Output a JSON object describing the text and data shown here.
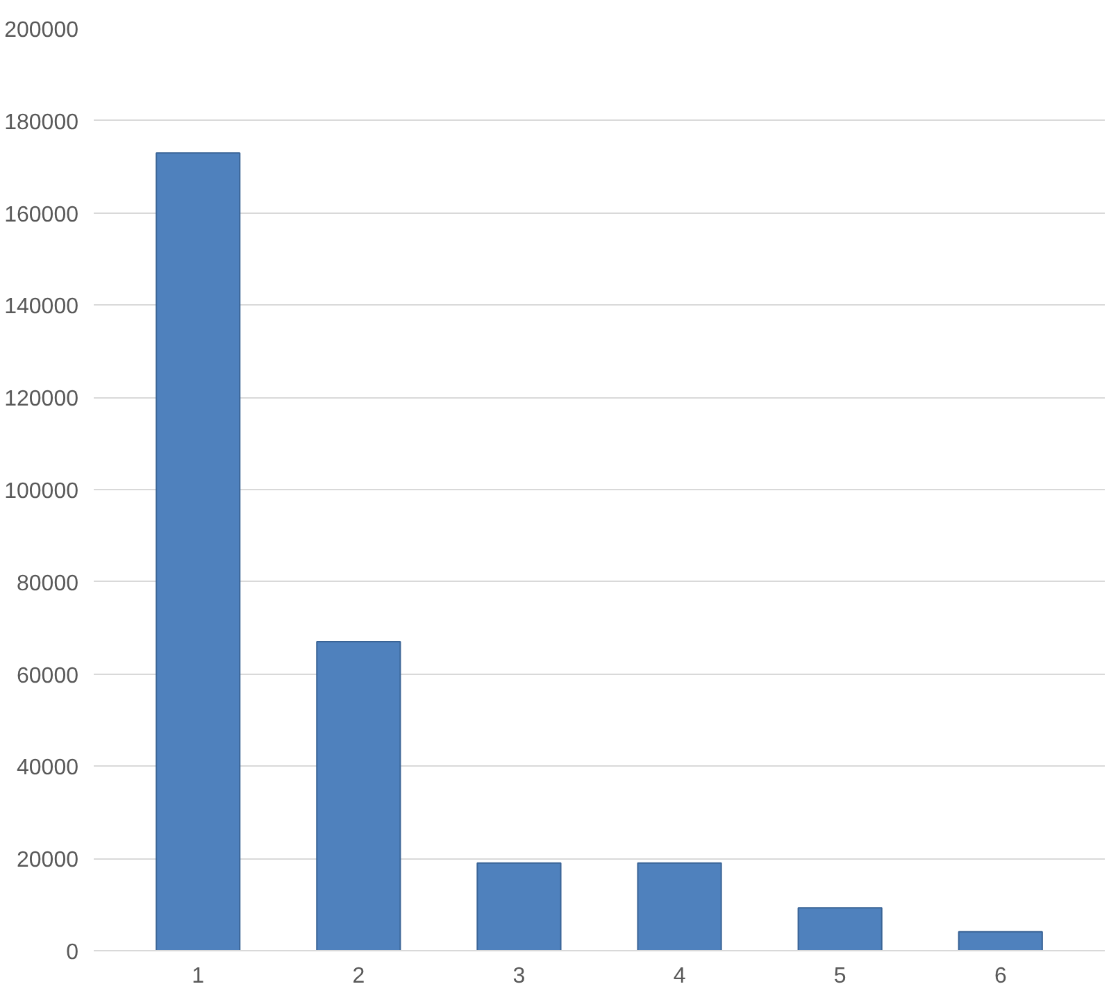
{
  "chart_data": {
    "type": "bar",
    "categories": [
      "1",
      "2",
      "3",
      "4",
      "5",
      "6"
    ],
    "values": [
      173000,
      67000,
      19000,
      19000,
      9300,
      4100
    ],
    "color": "#4f81bd",
    "ylim": [
      0,
      200000
    ],
    "yticks": [
      0,
      20000,
      40000,
      60000,
      80000,
      100000,
      120000,
      140000,
      160000,
      180000,
      200000
    ],
    "grid": "y"
  }
}
